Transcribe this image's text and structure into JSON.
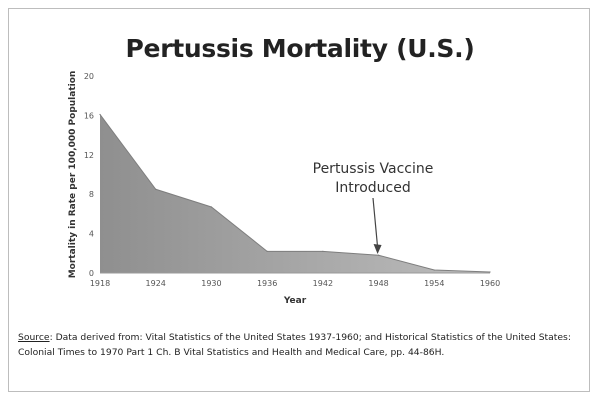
{
  "chart_data": {
    "type": "area",
    "title": "Pertussis Mortality (U.S.)",
    "xlabel": "Year",
    "ylabel": "Mortality in Rate per 100,000 Population",
    "x_ticks": [
      "1918",
      "1924",
      "1930",
      "1936",
      "1942",
      "1948",
      "1954",
      "1960"
    ],
    "y_ticks": [
      "0",
      "4",
      "8",
      "12",
      "16",
      "20"
    ],
    "xlim": [
      1918,
      1960
    ],
    "ylim": [
      0,
      20
    ],
    "x": [
      1918,
      1924,
      1930,
      1936,
      1942,
      1948,
      1954,
      1960
    ],
    "values": [
      16.1,
      8.5,
      6.7,
      2.2,
      2.2,
      1.8,
      0.3,
      0.1
    ],
    "grid": false,
    "fill_color": "#9b9b9b",
    "annotation": {
      "lines": [
        "Pertussis Vaccine",
        "Introduced"
      ],
      "x": 1948
    }
  },
  "source": {
    "label": "Source",
    "text": ": Data derived from: Vital Statistics of the United States 1937-1960; and Historical Statistics of the United States: Colonial Times to 1970 Part 1 Ch. B Vital Statistics and Health and Medical Care, pp. 44-86H."
  }
}
